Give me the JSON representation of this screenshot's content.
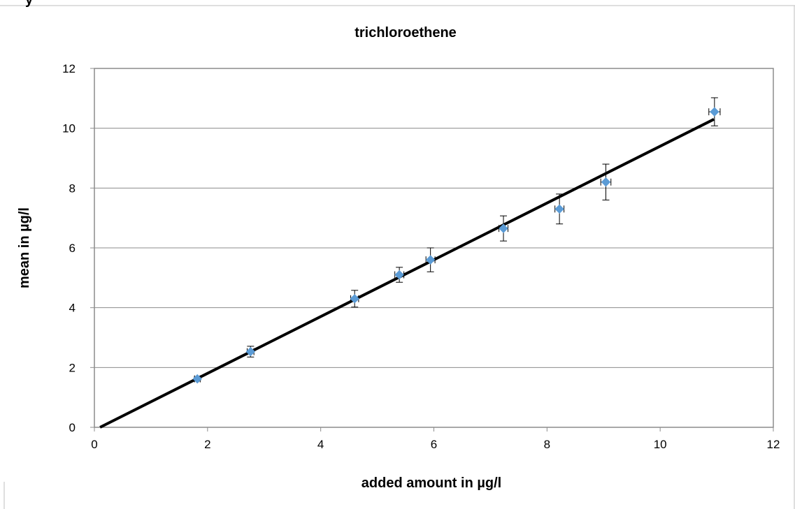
{
  "top_fragment": "y",
  "chart_data": {
    "type": "scatter",
    "title": "trichloroethene",
    "xlabel": "added amount in µg/l",
    "ylabel": "mean in µg/l",
    "xlim": [
      0,
      12
    ],
    "ylim": [
      0,
      12
    ],
    "x_ticks": [
      "0",
      "2",
      "4",
      "6",
      "8",
      "10",
      "12"
    ],
    "y_ticks": [
      "0",
      "2",
      "4",
      "6",
      "8",
      "10",
      "12"
    ],
    "grid": "horizontal",
    "legend": "none",
    "marker_color": "#5b9bd5",
    "line_color": "#000000",
    "points": [
      {
        "x": 1.82,
        "y": 1.62,
        "y_err": 0.06,
        "x_err": 0.05
      },
      {
        "x": 2.76,
        "y": 2.53,
        "y_err": 0.18,
        "x_err": 0.06
      },
      {
        "x": 4.6,
        "y": 4.3,
        "y_err": 0.28,
        "x_err": 0.07
      },
      {
        "x": 5.39,
        "y": 5.1,
        "y_err": 0.25,
        "x_err": 0.08
      },
      {
        "x": 5.94,
        "y": 5.6,
        "y_err": 0.4,
        "x_err": 0.08
      },
      {
        "x": 7.23,
        "y": 6.65,
        "y_err": 0.42,
        "x_err": 0.08
      },
      {
        "x": 8.22,
        "y": 7.3,
        "y_err": 0.5,
        "x_err": 0.08
      },
      {
        "x": 9.04,
        "y": 8.2,
        "y_err": 0.6,
        "x_err": 0.09
      },
      {
        "x": 10.96,
        "y": 10.55,
        "y_err": 0.47,
        "x_err": 0.1
      }
    ],
    "fit_line": {
      "x": [
        0.1,
        10.95
      ],
      "y": [
        0.0,
        10.3
      ]
    }
  }
}
